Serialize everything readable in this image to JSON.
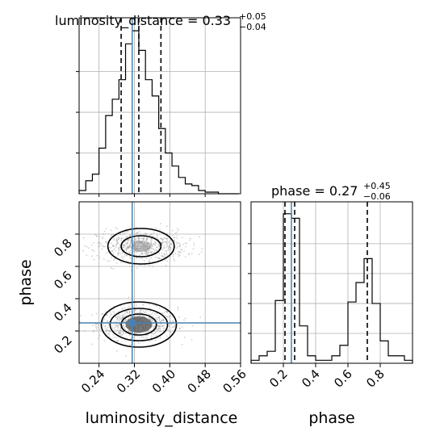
{
  "chart_data": [
    {
      "type": "histogram",
      "panel": "top-left",
      "parameter": "luminosity_distance",
      "title_main": "luminosity_distance = 0.33",
      "title_sup": "+0.05",
      "title_sub": "−0.04",
      "xlim": [
        0.195,
        0.56
      ],
      "x_bin_edges": [
        0.195,
        0.21,
        0.225,
        0.24,
        0.255,
        0.27,
        0.285,
        0.3,
        0.315,
        0.33,
        0.345,
        0.36,
        0.375,
        0.39,
        0.405,
        0.42,
        0.435,
        0.45,
        0.465,
        0.48,
        0.495,
        0.51,
        0.525,
        0.54,
        0.555
      ],
      "counts": [
        2,
        8,
        12,
        28,
        48,
        58,
        70,
        92,
        100,
        88,
        70,
        60,
        40,
        25,
        17,
        10,
        6,
        5,
        2,
        1,
        1,
        0,
        0,
        0
      ],
      "quantiles": [
        0.29,
        0.33,
        0.38
      ],
      "truth": 0.315,
      "grid": true
    },
    {
      "type": "histogram",
      "panel": "bottom-right",
      "parameter": "phase",
      "title_main": "phase = 0.27",
      "title_sup": "+0.45",
      "title_sub": "−0.06",
      "xlim": [
        0.0,
        1.0
      ],
      "x_bin_edges": [
        0.0,
        0.05,
        0.1,
        0.15,
        0.2,
        0.25,
        0.3,
        0.35,
        0.4,
        0.45,
        0.5,
        0.55,
        0.6,
        0.65,
        0.7,
        0.75,
        0.8,
        0.85,
        0.9,
        0.95,
        1.0
      ],
      "counts": [
        2,
        5,
        8,
        42,
        100,
        97,
        25,
        5,
        2,
        2,
        5,
        12,
        41,
        54,
        70,
        40,
        15,
        5,
        5,
        2
      ],
      "quantiles": [
        0.21,
        0.27,
        0.72
      ],
      "truth": 0.25,
      "xticks": [
        "0.2",
        "0.4",
        "0.6",
        "0.8"
      ],
      "xtick_values": [
        0.2,
        0.4,
        0.6,
        0.8
      ],
      "xlabel": "phase",
      "grid": true
    },
    {
      "type": "scatter-contour",
      "panel": "bottom-left",
      "x_parameter": "luminosity_distance",
      "y_parameter": "phase",
      "xlim": [
        0.195,
        0.56
      ],
      "ylim": [
        0.0,
        1.0
      ],
      "xticks": [
        "0.24",
        "0.32",
        "0.40",
        "0.48",
        "0.56"
      ],
      "xtick_values": [
        0.24,
        0.32,
        0.4,
        0.48,
        0.56
      ],
      "yticks": [
        "0.2",
        "0.4",
        "0.6",
        "0.8"
      ],
      "ytick_values": [
        0.2,
        0.4,
        0.6,
        0.8
      ],
      "xlabel": "luminosity_distance",
      "ylabel": "phase",
      "truth": [
        0.315,
        0.25
      ],
      "clusters": [
        {
          "center": [
            0.327,
            0.245
          ],
          "sd": [
            0.045,
            0.05
          ],
          "points": 650
        },
        {
          "center": [
            0.336,
            0.725
          ],
          "sd": [
            0.05,
            0.048
          ],
          "points": 650
        }
      ],
      "contour_levels": [
        {
          "center": [
            0.33,
            0.24
          ],
          "rx": 0.085,
          "ry": 0.14
        },
        {
          "center": [
            0.33,
            0.24
          ],
          "rx": 0.065,
          "ry": 0.1
        },
        {
          "center": [
            0.33,
            0.24
          ],
          "rx": 0.04,
          "ry": 0.065
        },
        {
          "center": [
            0.335,
            0.725
          ],
          "rx": 0.075,
          "ry": 0.11
        },
        {
          "center": [
            0.335,
            0.725
          ],
          "rx": 0.045,
          "ry": 0.065
        }
      ],
      "grid": true
    }
  ],
  "colors": {
    "truth": "#4682b4",
    "line": "#000000",
    "scatter": "#9a9a9a",
    "density_dark": "#333333",
    "grid": "#b0b0b0"
  }
}
